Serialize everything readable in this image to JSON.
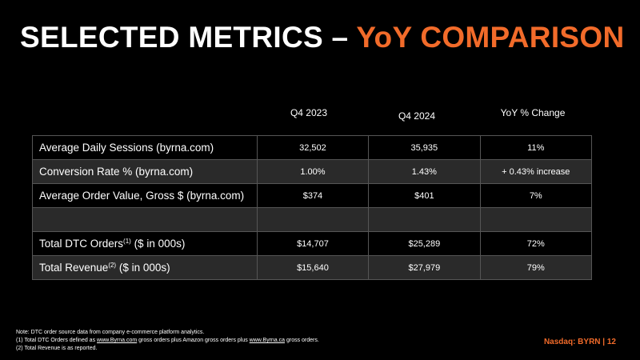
{
  "title": {
    "main": "SELECTED METRICS – ",
    "accent": "YoY COMPARISON"
  },
  "table": {
    "columns": [
      "Q4 2023",
      "Q4 2024",
      "YoY % Change"
    ],
    "rows": [
      {
        "label": "Average Daily Sessions (byrna.com)",
        "sup": "",
        "suffix": "",
        "values": [
          "32,502",
          "35,935",
          "11%"
        ]
      },
      {
        "label": "Conversion Rate % (byrna.com)",
        "sup": "",
        "suffix": "",
        "values": [
          "1.00%",
          "1.43%",
          "+ 0.43% increase"
        ]
      },
      {
        "label": "Average Order Value, Gross $ (byrna.com)",
        "sup": "",
        "suffix": "",
        "values": [
          "$374",
          "$401",
          "7%"
        ]
      },
      {
        "label": "",
        "sup": "",
        "suffix": "",
        "values": [
          "",
          "",
          ""
        ]
      },
      {
        "label": "Total DTC Orders",
        "sup": "(1)",
        "suffix": " ($ in 000s)",
        "values": [
          "$14,707",
          "$25,289",
          "72%"
        ]
      },
      {
        "label": "Total Revenue",
        "sup": "(2)",
        "suffix": " ($ in 000s)",
        "values": [
          "$15,640",
          "$27,979",
          "79%"
        ]
      }
    ]
  },
  "notes": {
    "line1": "Note: DTC order source data from company e-commerce platform analytics.",
    "line2_a": "(1) Total DTC Orders defined as ",
    "line2_link1": "www.Byrna.com",
    "line2_b": " gross orders plus Amazon gross orders plus ",
    "line2_link2": "www.Byrna.ca",
    "line2_c": " gross orders.",
    "line3": "(2) Total Revenue is as reported."
  },
  "footer": {
    "tag": "Nasdaq: BYRN | 12"
  },
  "colors": {
    "accent": "#f26b2a",
    "background": "#000000",
    "row_shade": "#2a2a2a"
  }
}
